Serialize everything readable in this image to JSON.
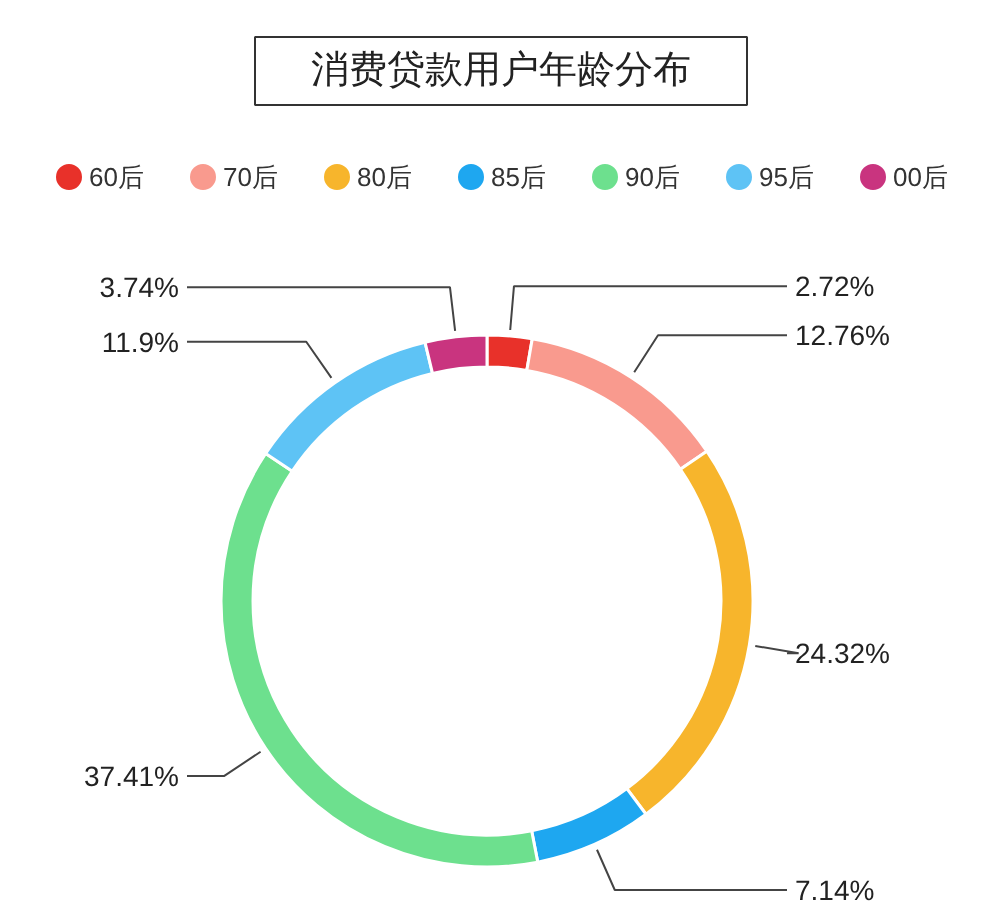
{
  "chart_data": {
    "type": "donut",
    "title": "消费贷款用户年龄分布",
    "categories": [
      "60后",
      "70后",
      "80后",
      "85后",
      "90后",
      "95后",
      "00后"
    ],
    "values": [
      2.72,
      12.76,
      24.32,
      7.14,
      37.41,
      11.9,
      3.74
    ],
    "value_labels": [
      "2.72%",
      "12.76%",
      "24.32%",
      "7.14%",
      "37.41%",
      "11.9%",
      "3.74%"
    ],
    "colors": [
      "#e8312a",
      "#f99a8e",
      "#f7b52c",
      "#1ea7f0",
      "#6de08e",
      "#5ec3f5",
      "#c9347f"
    ],
    "legend": "top"
  }
}
